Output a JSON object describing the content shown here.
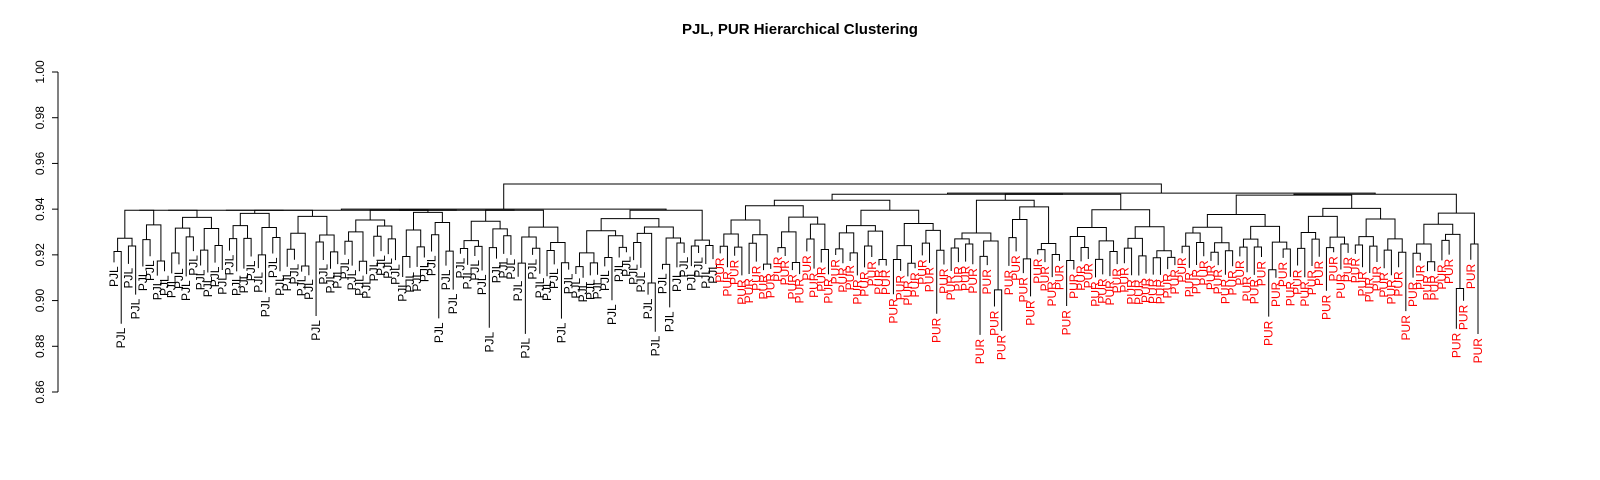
{
  "chart_data": {
    "type": "dendrogram",
    "title": "PJL, PUR Hierarchical Clustering",
    "ylabel": "",
    "xlabel": "",
    "ylim": [
      0.86,
      1.0
    ],
    "y_ticks": [
      0.86,
      0.88,
      0.9,
      0.92,
      0.94,
      0.96,
      0.98,
      1.0
    ],
    "y_tick_labels": [
      "0.86",
      "0.88",
      "0.90",
      "0.92",
      "0.94",
      "0.96",
      "0.98",
      "1.00"
    ],
    "groups": [
      {
        "label": "PJL",
        "color": "#000000",
        "count": 84
      },
      {
        "label": "PUR",
        "color": "#ff0000",
        "count": 106
      }
    ],
    "root_height": 0.951,
    "group_heights": {
      "PJL": 0.94,
      "PUR": 0.951
    },
    "leaf_height_range": [
      0.885,
      0.922
    ]
  }
}
